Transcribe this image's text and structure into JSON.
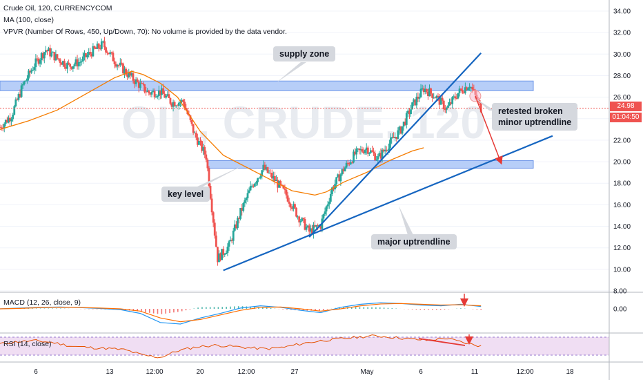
{
  "header": {
    "symbol_line": "Crude Oil, 120, CURRENCYCOM",
    "ma_line": "MA (100, close)",
    "vpvr_line": "VPVR (Number Of Rows, 450, Up/Down, 70): No volume is provided by the data vendor."
  },
  "watermark": "OIL, CRUDE, 120",
  "annotations": {
    "supply_zone": "supply zone",
    "key_level": "key level",
    "retest_line1": "retested broken",
    "retest_line2": "minor uptrendline",
    "major_trend": "major uptrendline"
  },
  "price_tags": {
    "last_price": "24.98",
    "countdown": "01:04:50"
  },
  "colors": {
    "up": "#26a69a",
    "down": "#ef5350",
    "ma": "#f57c00",
    "trendline": "#1565c0",
    "zone": "#90b4f5",
    "rsi": "#e65100",
    "macd": "#2196f3",
    "signal": "#ff6d00"
  },
  "chart_data": [
    {
      "type": "candlestick",
      "title": "Crude Oil, 120, CURRENCYCOM",
      "y_ticks": [
        "34.00",
        "32.00",
        "30.00",
        "28.00",
        "26.00",
        "24.00",
        "22.00",
        "20.00",
        "18.00",
        "16.00",
        "14.00",
        "12.00",
        "10.00",
        "8.00"
      ],
      "ylim": [
        8,
        34
      ],
      "x_ticks": [
        "6",
        "13",
        "12:00",
        "20",
        "12:00",
        "27",
        "May",
        "6",
        "11",
        "12:00",
        "18"
      ],
      "price_path": [
        [
          0,
          23.2
        ],
        [
          4,
          24.3
        ],
        [
          8,
          27.1
        ],
        [
          12,
          29.0
        ],
        [
          16,
          30.4
        ],
        [
          20,
          29.6
        ],
        [
          24,
          28.9
        ],
        [
          28,
          29.3
        ],
        [
          32,
          30.2
        ],
        [
          36,
          30.9
        ],
        [
          40,
          29.4
        ],
        [
          44,
          28.3
        ],
        [
          48,
          27.3
        ],
        [
          52,
          26.4
        ],
        [
          56,
          26.5
        ],
        [
          60,
          25.5
        ],
        [
          64,
          25.6
        ],
        [
          68,
          22.5
        ],
        [
          72,
          20.5
        ],
        [
          76,
          11.0
        ],
        [
          80,
          12.2
        ],
        [
          84,
          15.3
        ],
        [
          88,
          17.8
        ],
        [
          92,
          19.4
        ],
        [
          96,
          18.3
        ],
        [
          100,
          16.9
        ],
        [
          104,
          15.0
        ],
        [
          108,
          13.5
        ],
        [
          112,
          14.1
        ],
        [
          116,
          17.5
        ],
        [
          120,
          19.3
        ],
        [
          124,
          20.7
        ],
        [
          128,
          21.3
        ],
        [
          132,
          20.3
        ],
        [
          136,
          21.7
        ],
        [
          140,
          23.0
        ],
        [
          144,
          25.2
        ],
        [
          148,
          26.8
        ],
        [
          152,
          26.1
        ],
        [
          156,
          24.9
        ],
        [
          160,
          26.4
        ],
        [
          164,
          27.2
        ],
        [
          168,
          24.98
        ]
      ],
      "last_price": 24.98,
      "series": [
        {
          "name": "MA (100, close)",
          "values": [
            [
              0,
              23.0
            ],
            [
              10,
              23.8
            ],
            [
              20,
              24.8
            ],
            [
              30,
              26.3
            ],
            [
              40,
              27.8
            ],
            [
              46,
              28.4
            ],
            [
              50,
              28.1
            ],
            [
              56,
              27.3
            ],
            [
              62,
              26.0
            ],
            [
              70,
              22.8
            ],
            [
              78,
              20.6
            ],
            [
              86,
              19.5
            ],
            [
              94,
              18.4
            ],
            [
              102,
              17.3
            ],
            [
              110,
              16.9
            ],
            [
              114,
              17.2
            ],
            [
              120,
              18.1
            ],
            [
              128,
              19.0
            ],
            [
              136,
              20.1
            ],
            [
              144,
              21.0
            ],
            [
              148,
              21.3
            ]
          ]
        }
      ],
      "zones": [
        {
          "name": "supply zone",
          "from": 26.6,
          "to": 27.5
        },
        {
          "name": "key level",
          "from": 19.4,
          "to": 20.1
        }
      ],
      "trendlines": [
        {
          "name": "minor uptrendline",
          "from": [
            108,
            13.0
          ],
          "to": [
            168,
            30.1
          ]
        },
        {
          "name": "major uptrendline",
          "from": [
            78,
            9.9
          ],
          "to": [
            193,
            22.4
          ]
        }
      ]
    },
    {
      "type": "line",
      "title": "MACD (12, 26, close, 9)",
      "y_ticks": [
        "0.00"
      ],
      "series": [
        {
          "name": "MACD",
          "values": [
            0,
            0.05,
            0.1,
            0.12,
            0.08,
            0.02,
            -0.05,
            -0.3,
            -0.9,
            -1.0,
            -0.6,
            -0.3,
            0.05,
            0.2,
            0.1,
            -0.1,
            -0.25,
            0.1,
            0.3,
            0.4,
            0.35,
            0.25,
            0.2,
            0.3,
            0.15
          ]
        },
        {
          "name": "signal",
          "values": [
            0,
            0.03,
            0.08,
            0.1,
            0.09,
            0.05,
            0.0,
            -0.15,
            -0.6,
            -0.85,
            -0.7,
            -0.4,
            -0.1,
            0.1,
            0.12,
            0.0,
            -0.15,
            0.0,
            0.2,
            0.32,
            0.35,
            0.3,
            0.25,
            0.27,
            0.2
          ]
        }
      ]
    },
    {
      "type": "line",
      "title": "RSI (14, close)",
      "ylim": [
        0,
        100
      ],
      "band": [
        30,
        70
      ],
      "series": [
        {
          "name": "RSI",
          "values": [
            55,
            60,
            62,
            58,
            50,
            47,
            45,
            42,
            30,
            25,
            40,
            48,
            52,
            50,
            46,
            44,
            48,
            56,
            62,
            66,
            70,
            73,
            70,
            66,
            63,
            68,
            58,
            50
          ]
        }
      ]
    }
  ]
}
